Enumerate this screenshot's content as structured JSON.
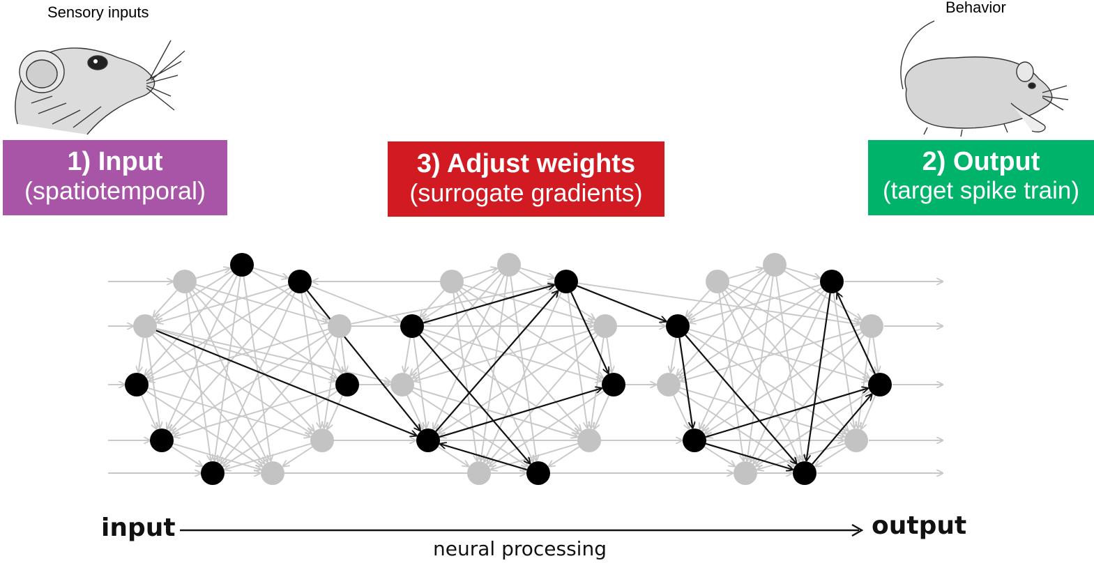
{
  "captions": {
    "sensory": "Sensory inputs",
    "behavior": "Behavior"
  },
  "boxes": {
    "input": {
      "title": "1) Input",
      "sub": "(spatiotemporal)",
      "color": "#a855a8"
    },
    "adjust": {
      "title": "3) Adjust weights",
      "sub": "(surrogate gradients)",
      "color": "#d11a22"
    },
    "output": {
      "title": "2) Output",
      "sub": "(target spike train)",
      "color": "#00b36b"
    }
  },
  "axis": {
    "input_label": "input",
    "output_label": "output",
    "process_label": "neural processing"
  },
  "colors": {
    "active_node": "#000000",
    "inactive_node": "#c3c3c3",
    "active_edge": "#111111",
    "inactive_edge": "#c8c8c8"
  },
  "illustrations": [
    "rat-head-sketch",
    "rat-body-sketch"
  ]
}
